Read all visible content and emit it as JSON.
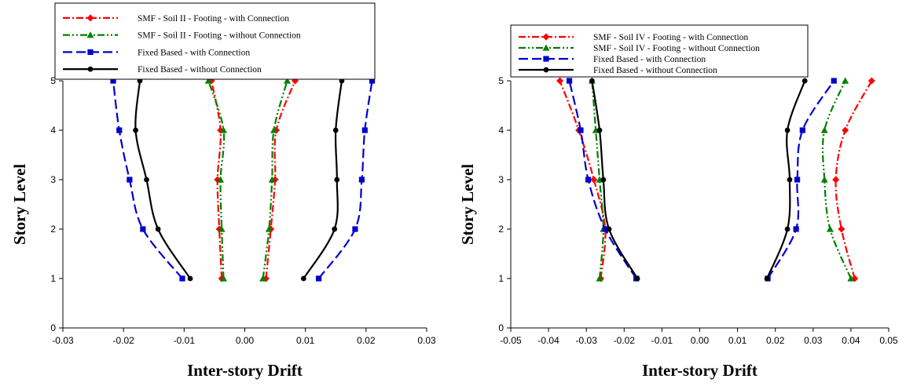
{
  "chart_data": [
    {
      "type": "line",
      "xlabel": "Inter-story Drift",
      "ylabel": "Story Level",
      "xlim": [
        -0.03,
        0.03
      ],
      "ylim": [
        0,
        5
      ],
      "xticks": [
        "-0.03",
        "-0.02",
        "-0.01",
        "0.00",
        "0.01",
        "0.02",
        "0.03"
      ],
      "yticks": [
        "0",
        "1",
        "2",
        "3",
        "4",
        "5"
      ],
      "grid": false,
      "legend_position": "top-left",
      "legend": [
        "SMF - Soil II - Footing - with Connection",
        "SMF - Soil II - Footing - without Connection",
        "Fixed Based - with Connection",
        "Fixed Based - without Connection"
      ],
      "series": [
        {
          "name": "SMF - Soil II - Footing - with Connection",
          "color": "#ff0000",
          "marker": "diamond",
          "dash": "dashdot",
          "segments": [
            {
              "x": [
                -0.0038,
                -0.0042,
                -0.0045,
                -0.004,
                -0.0055
              ],
              "y": [
                1,
                2,
                3,
                4,
                5
              ]
            },
            {
              "x": [
                0.0035,
                0.0043,
                0.005,
                0.0052,
                0.0083
              ],
              "y": [
                1,
                2,
                3,
                4,
                5
              ]
            }
          ]
        },
        {
          "name": "SMF - Soil II - Footing - without Connection",
          "color": "#008000",
          "marker": "triangle",
          "dash": "dashdotdot",
          "segments": [
            {
              "x": [
                -0.0035,
                -0.0038,
                -0.004,
                -0.0035,
                -0.006
              ],
              "y": [
                1,
                2,
                3,
                4,
                5
              ]
            },
            {
              "x": [
                0.003,
                0.004,
                0.0045,
                0.0048,
                0.007
              ],
              "y": [
                1,
                2,
                3,
                4,
                5
              ]
            }
          ]
        },
        {
          "name": "Fixed Based - with Connection",
          "color": "#0000cd",
          "marker": "square",
          "dash": "dash",
          "segments": [
            {
              "x": [
                -0.0103,
                -0.0168,
                -0.019,
                -0.0207,
                -0.0217
              ],
              "y": [
                1,
                2,
                3,
                4,
                5
              ]
            },
            {
              "x": [
                0.0122,
                0.0182,
                0.0193,
                0.0198,
                0.021
              ],
              "y": [
                1,
                2,
                3,
                4,
                5
              ]
            }
          ]
        },
        {
          "name": "Fixed Based - without Connection",
          "color": "#000000",
          "marker": "circle",
          "dash": "solid",
          "segments": [
            {
              "x": [
                -0.009,
                -0.0143,
                -0.0162,
                -0.018,
                -0.0173
              ],
              "y": [
                1,
                2,
                3,
                4,
                5
              ]
            },
            {
              "x": [
                0.0097,
                0.0148,
                0.0152,
                0.015,
                0.016
              ],
              "y": [
                1,
                2,
                3,
                4,
                5
              ]
            }
          ]
        }
      ]
    },
    {
      "type": "line",
      "xlabel": "Inter-story Drift",
      "ylabel": "Story Level",
      "xlim": [
        -0.05,
        0.05
      ],
      "ylim": [
        0,
        5
      ],
      "xticks": [
        "-0.05",
        "-0.04",
        "-0.03",
        "-0.02",
        "-0.01",
        "0.00",
        "0.01",
        "0.02",
        "0.03",
        "0.04",
        "0.05"
      ],
      "yticks": [
        "0",
        "1",
        "2",
        "3",
        "4",
        "5"
      ],
      "grid": false,
      "legend_position": "top-left",
      "legend": [
        "SMF - Soil IV - Footing - with Connection",
        "SMF - Soil IV - Footing - without Connection",
        "Fixed Based - with Connection",
        "Fixed Based - without Connection"
      ],
      "series": [
        {
          "name": "SMF - Soil IV - Footing - with Connection",
          "color": "#ff0000",
          "marker": "diamond",
          "dash": "dashdot",
          "segments": [
            {
              "x": [
                -0.0262,
                -0.025,
                -0.028,
                -0.032,
                -0.037
              ],
              "y": [
                1,
                2,
                3,
                4,
                5
              ]
            },
            {
              "x": [
                0.041,
                0.0375,
                0.036,
                0.0385,
                0.0455
              ],
              "y": [
                1,
                2,
                3,
                4,
                5
              ]
            }
          ]
        },
        {
          "name": "SMF - Soil IV - Footing - without Connection",
          "color": "#008000",
          "marker": "triangle",
          "dash": "dashdotdot",
          "segments": [
            {
              "x": [
                -0.0265,
                -0.0255,
                -0.0265,
                -0.0275,
                -0.0285
              ],
              "y": [
                1,
                2,
                3,
                4,
                5
              ]
            },
            {
              "x": [
                0.04,
                0.0345,
                0.033,
                0.033,
                0.0385
              ],
              "y": [
                1,
                2,
                3,
                4,
                5
              ]
            }
          ]
        },
        {
          "name": "Fixed Based - with Connection",
          "color": "#0000cd",
          "marker": "square",
          "dash": "dash",
          "segments": [
            {
              "x": [
                -0.0168,
                -0.025,
                -0.0295,
                -0.0315,
                -0.0345
              ],
              "y": [
                1,
                2,
                3,
                4,
                5
              ]
            },
            {
              "x": [
                0.018,
                0.0255,
                0.0258,
                0.0272,
                0.0355
              ],
              "y": [
                1,
                2,
                3,
                4,
                5
              ]
            }
          ]
        },
        {
          "name": "Fixed Based - without Connection",
          "color": "#000000",
          "marker": "circle",
          "dash": "solid",
          "segments": [
            {
              "x": [
                -0.0165,
                -0.024,
                -0.0255,
                -0.0265,
                -0.0285
              ],
              "y": [
                1,
                2,
                3,
                4,
                5
              ]
            },
            {
              "x": [
                0.0178,
                0.0232,
                0.0238,
                0.0232,
                0.0278
              ],
              "y": [
                1,
                2,
                3,
                4,
                5
              ]
            }
          ]
        }
      ]
    }
  ]
}
